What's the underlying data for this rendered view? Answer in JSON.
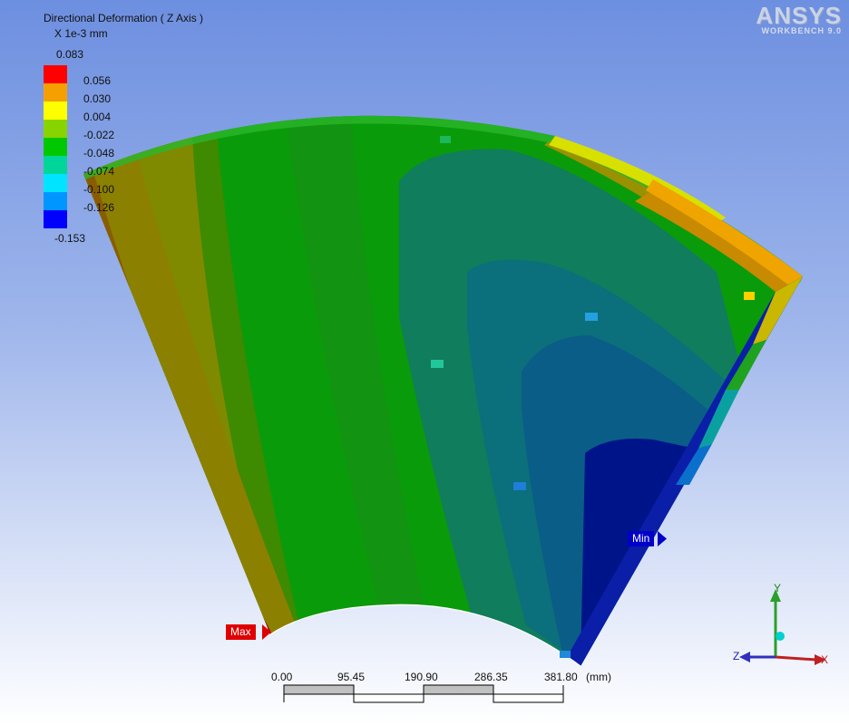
{
  "result": {
    "title": "Directional Deformation ( Z Axis )",
    "units": "X 1e-3 mm",
    "max_label": "0.083",
    "min_label": "-0.153"
  },
  "legend": {
    "ticks": [
      "0.056",
      "0.030",
      "0.004",
      "-0.022",
      "-0.048",
      "-0.074",
      "-0.100",
      "-0.126"
    ],
    "colors": [
      "#ff0000",
      "#f5a000",
      "#ffff00",
      "#88d400",
      "#00c800",
      "#00d59a",
      "#00e4ff",
      "#0096ff",
      "#0000ff"
    ]
  },
  "logo": {
    "name": "ANSYS",
    "product": "WORKBENCH 9.0"
  },
  "probes": {
    "max": "Max",
    "min": "Min"
  },
  "scale_bar": {
    "ticks": [
      "0.00",
      "95.45",
      "190.90",
      "286.35",
      "381.80"
    ],
    "unit": "(mm)"
  },
  "triad": {
    "x": "X",
    "y": "Y",
    "z": "Z"
  }
}
